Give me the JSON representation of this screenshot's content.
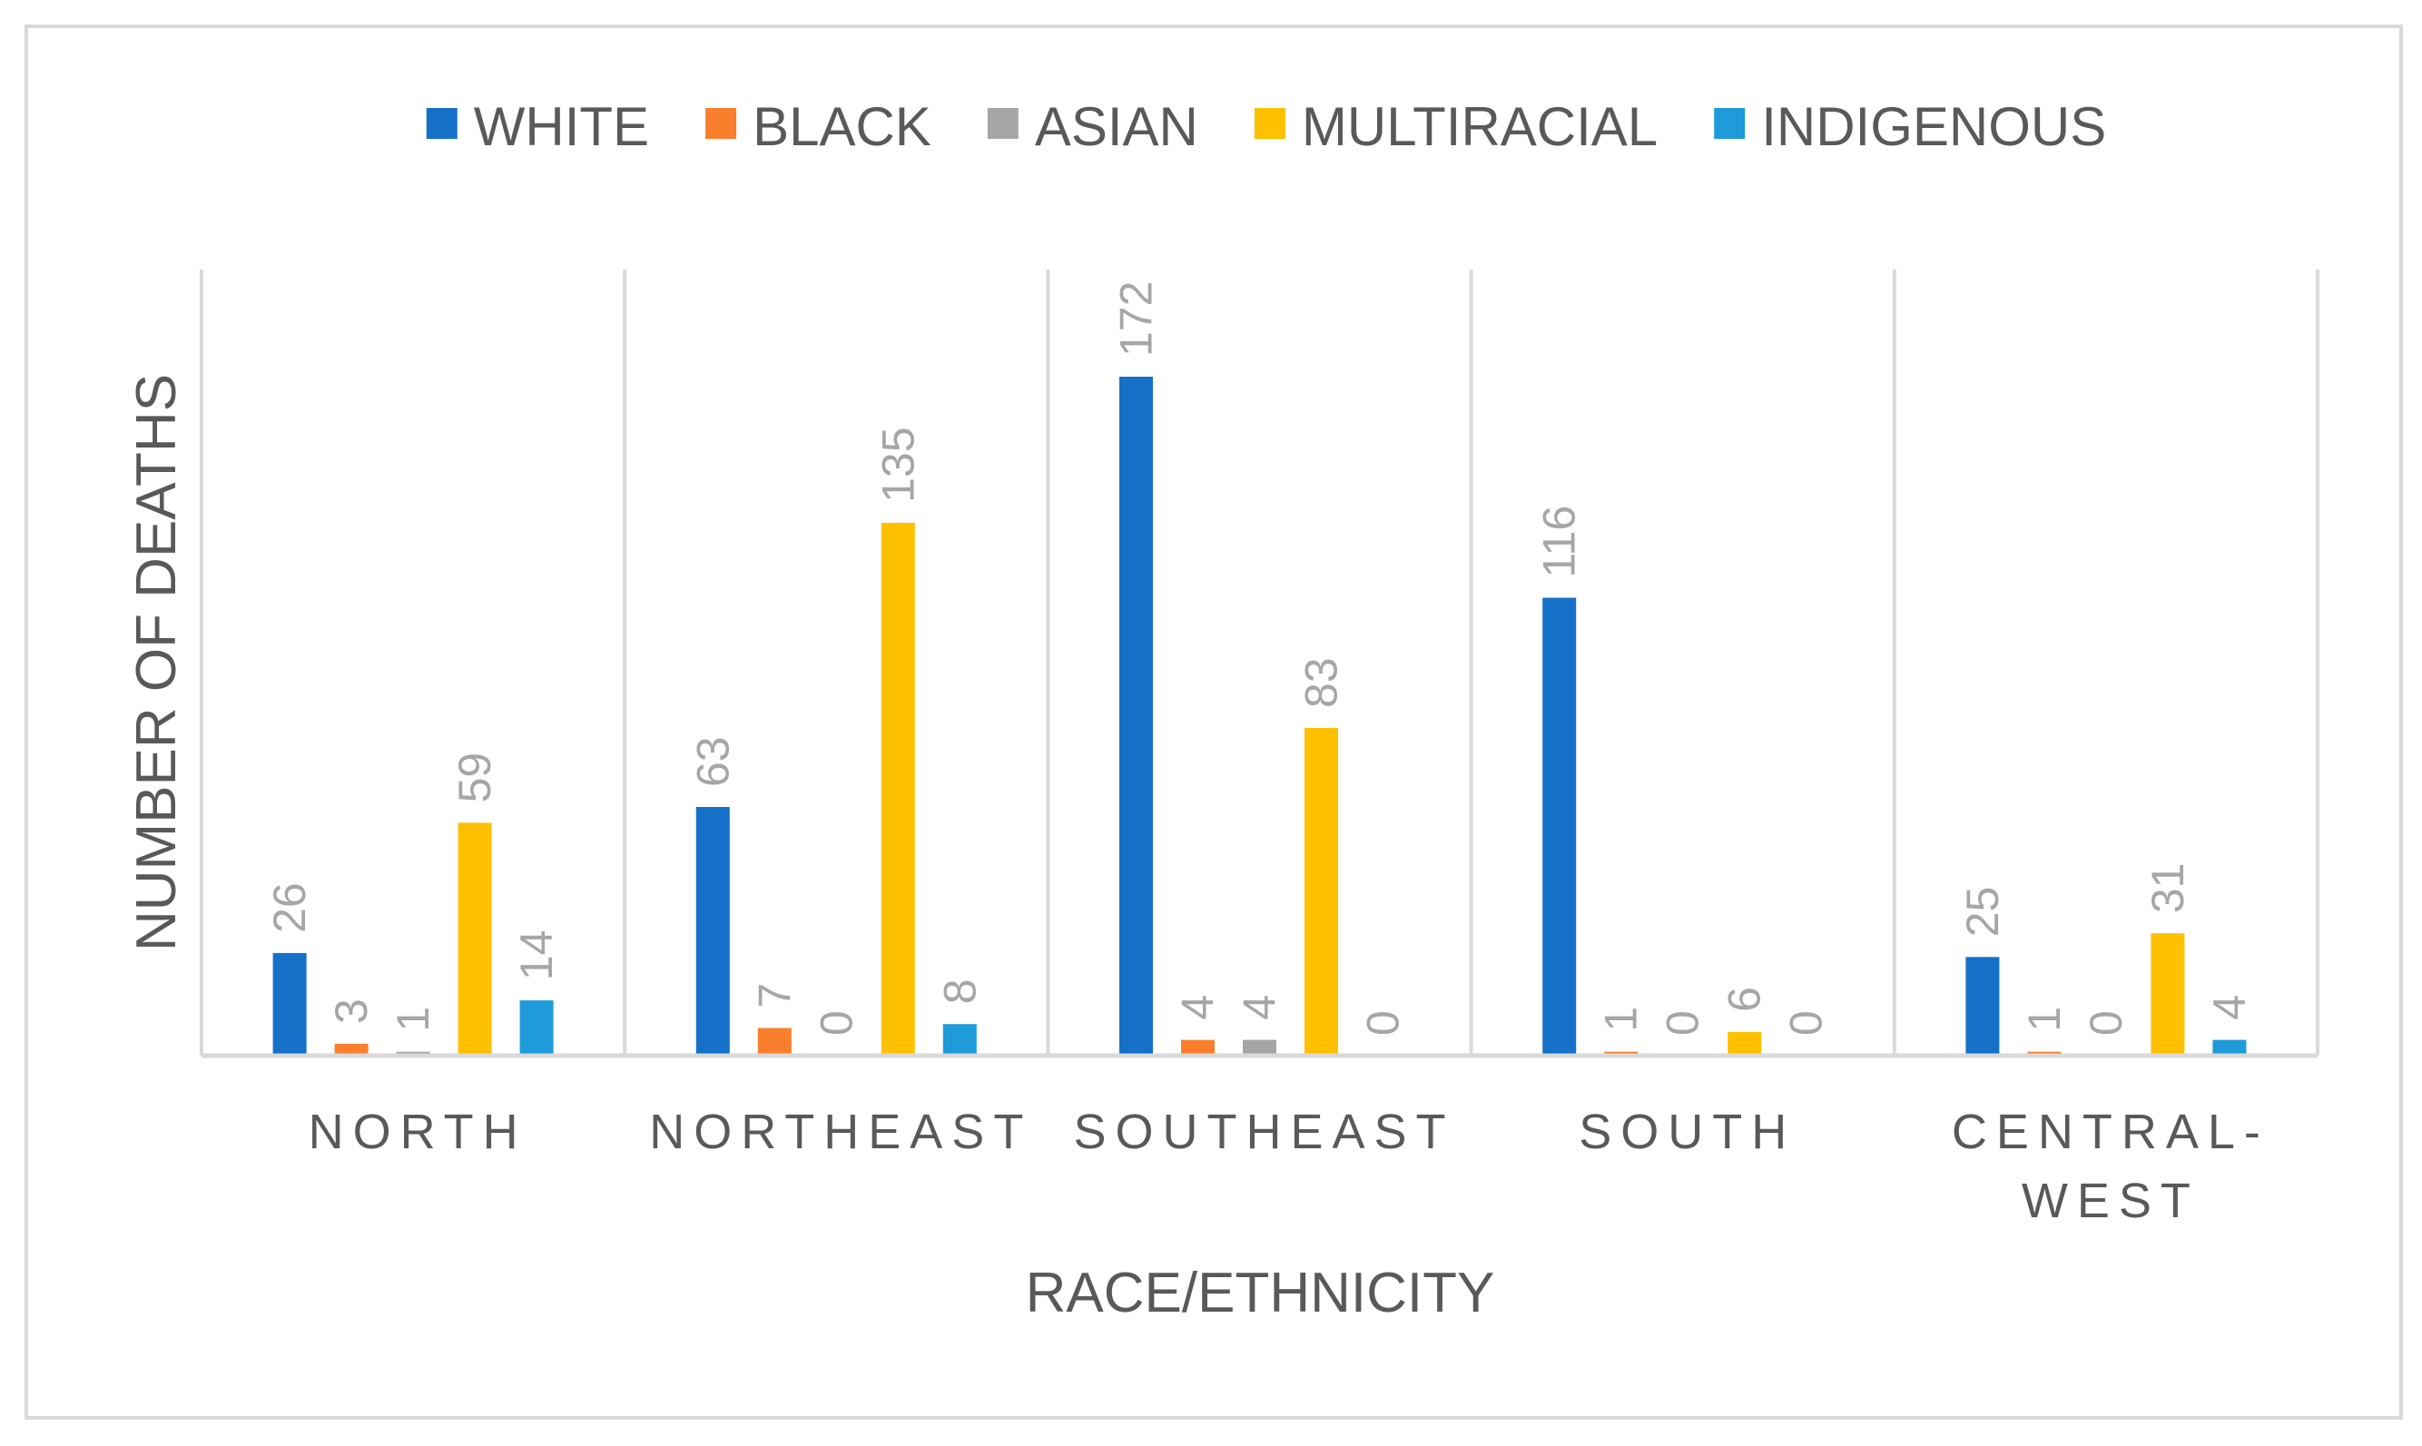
{
  "chart_data": {
    "type": "bar",
    "title": "",
    "xlabel": "RACE/ETHNICITY",
    "ylabel": "NUMBER OF DEATHS",
    "ylim": [
      0,
      200
    ],
    "legend_position": "top",
    "grid": false,
    "categories": [
      "NORTH",
      "NORTHEAST",
      "SOUTHEAST",
      "SOUTH",
      "CENTRAL-WEST"
    ],
    "series": [
      {
        "name": "WHITE",
        "color": "#1570C8",
        "values": [
          26,
          63,
          172,
          116,
          25
        ]
      },
      {
        "name": "BLACK",
        "color": "#F97F2D",
        "values": [
          3,
          7,
          4,
          1,
          1
        ]
      },
      {
        "name": "ASIAN",
        "color": "#A5A5A5",
        "values": [
          1,
          0,
          4,
          0,
          0
        ]
      },
      {
        "name": "MULTIRACIAL",
        "color": "#FFC000",
        "values": [
          59,
          135,
          83,
          6,
          31
        ]
      },
      {
        "name": "INDIGENOUS",
        "color": "#1E9BD8",
        "values": [
          14,
          8,
          0,
          0,
          4
        ]
      }
    ]
  }
}
